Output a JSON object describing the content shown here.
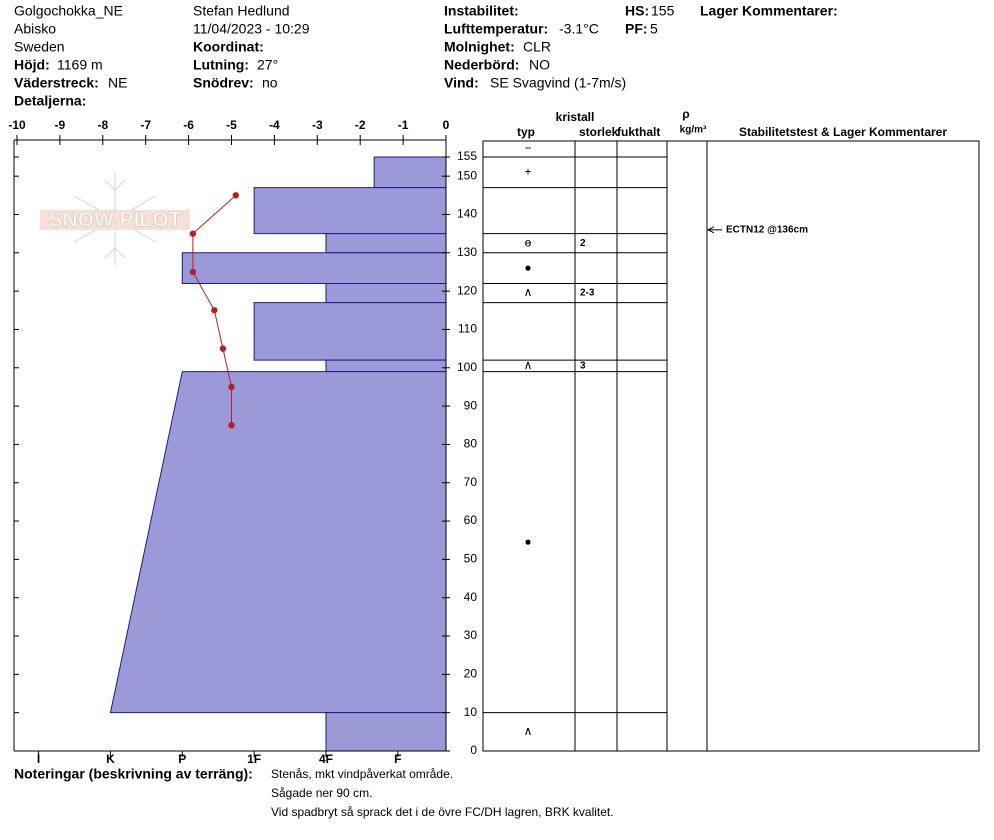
{
  "header": {
    "site": "Golgochokka_NE",
    "location": "Abisko",
    "country": "Sweden",
    "elevation_label": "Höjd:",
    "elevation": "1169 m",
    "aspect_label": "Väderstreck:",
    "aspect": "NE",
    "details_label": "Detaljerna:",
    "observer": "Stefan Hedlund",
    "datetime": "11/04/2023 - 10:29",
    "coordinate_label": "Koordinat:",
    "slope_label": "Lutning:",
    "slope": "27°",
    "drift_label": "Snödrev:",
    "drift": "no",
    "instability_label": "Instabilitet:",
    "air_temp_label": "Lufttemperatur:",
    "air_temp": "-3.1°C",
    "sky_label": "Molnighet:",
    "sky": "CLR",
    "precip_label": "Nederbörd:",
    "precip": "NO",
    "wind_label": "Vind:",
    "wind": "SE Svagvind (1-7m/s)",
    "hs_label": "HS:",
    "hs": 155,
    "pf_label": "PF:",
    "pf": 5,
    "layer_comments_label": "Lager Kommentarer:"
  },
  "logo": "SNOW PILOT",
  "chart_data": {
    "type": "snow-profile",
    "xlim": [
      -10,
      0
    ],
    "xticks": [
      -10,
      -9,
      -8,
      -7,
      -6,
      -5,
      -4,
      -3,
      -2,
      -1,
      0
    ],
    "hardness_lim": [
      6.3,
      0.33
    ],
    "hardness_ticks": [
      {
        "value": 6,
        "label": "I"
      },
      {
        "value": 5,
        "label": "K"
      },
      {
        "value": 4,
        "label": "P"
      },
      {
        "value": 3,
        "label": "1F"
      },
      {
        "value": 2,
        "label": "4F"
      },
      {
        "value": 1,
        "label": "F"
      }
    ],
    "ylim": [
      0,
      155
    ],
    "yticks": [
      0,
      10,
      20,
      30,
      40,
      50,
      60,
      70,
      80,
      90,
      100,
      110,
      120,
      130,
      140,
      150,
      155
    ],
    "layer_color": "#9c99d9",
    "layers": [
      {
        "top": 155,
        "bottom": 147,
        "hardness": 1.33
      },
      {
        "top": 147,
        "bottom": 135,
        "hardness": 3
      },
      {
        "top": 135,
        "bottom": 130,
        "hardness": 2
      },
      {
        "top": 130,
        "bottom": 122,
        "hardness": 4
      },
      {
        "top": 122,
        "bottom": 117,
        "hardness": 2
      },
      {
        "top": 117,
        "bottom": 102,
        "hardness": 3
      },
      {
        "top": 102,
        "bottom": 99,
        "hardness": 2
      },
      {
        "top": 99,
        "bottom": 10,
        "hardness": 4,
        "hardness_bottom": 5
      },
      {
        "top": 10,
        "bottom": 0,
        "hardness": 2
      }
    ],
    "temperature": {
      "color": "#b52025",
      "depths": [
        145,
        135,
        125,
        115,
        105,
        95,
        85
      ],
      "values": [
        -4.9,
        -5.9,
        -5.9,
        -5.4,
        -5.2,
        -5,
        -5
      ]
    }
  },
  "table": {
    "headers": {
      "crystal": "kristall",
      "type": "typ",
      "size": "storlek",
      "moisture": "fukthalt",
      "rho": "ρ",
      "density_unit": "kg/m³",
      "comments": "Stabilitetstest & Lager Kommentarer"
    },
    "surface_symbol": "−",
    "rows": [
      {
        "symbol": "+"
      },
      {},
      {
        "symbol": "ɵ",
        "size": 2
      },
      {
        "symbol": "●"
      },
      {
        "symbol": "∧",
        "size": "2-3"
      },
      {},
      {
        "symbol": "∧",
        "size": 3
      },
      {
        "symbol": "●"
      },
      {
        "symbol": "∧"
      }
    ],
    "tests": [
      {
        "label": "ECTN12 @136cm",
        "depth": 136
      }
    ]
  },
  "notes": {
    "label": "Noteringar (beskrivning av terräng):",
    "lines": [
      "Stenås, mkt vindpåverkat område.",
      "Sågade ner 90 cm.",
      "Vid spadbryt så sprack det i de övre FC/DH lagren, BRK kvalitet."
    ]
  }
}
